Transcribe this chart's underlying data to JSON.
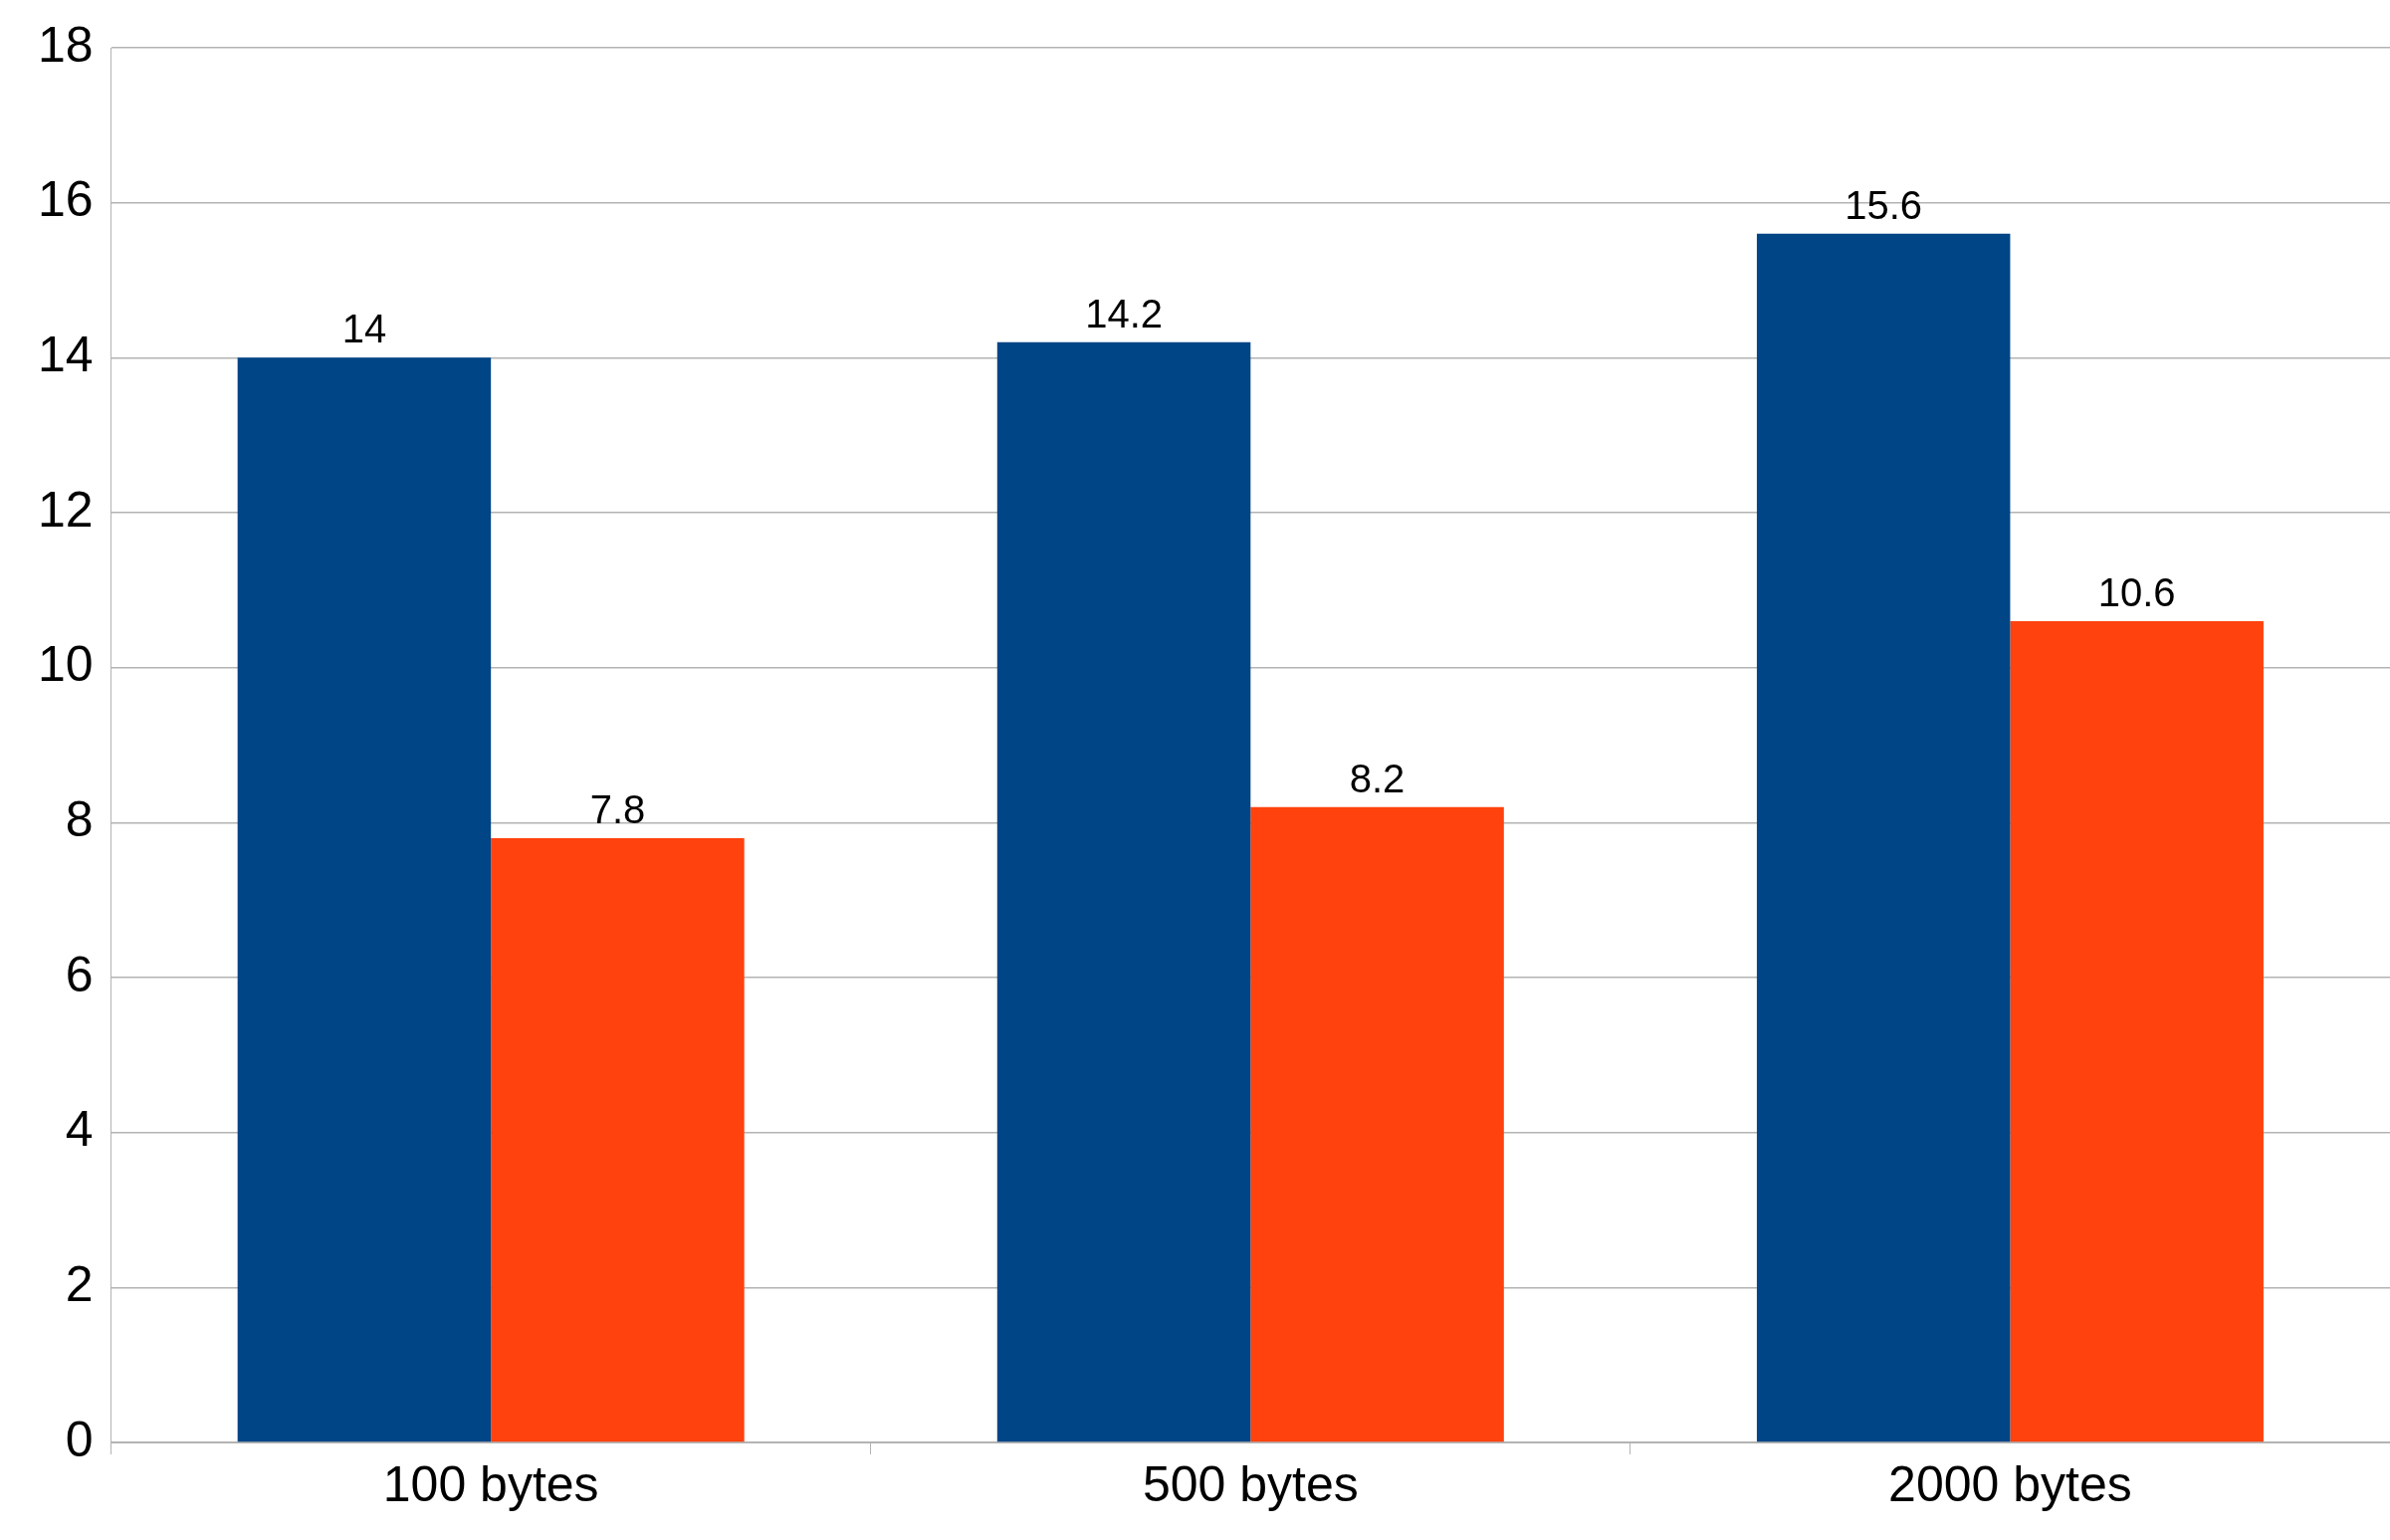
{
  "chart_data": {
    "type": "bar",
    "categories": [
      "100 bytes",
      "500 bytes",
      "2000 bytes"
    ],
    "series": [
      {
        "color": "#004586",
        "values": [
          14,
          14.2,
          15.6
        ]
      },
      {
        "color": "#ff420e",
        "values": [
          7.8,
          8.2,
          10.6
        ]
      }
    ],
    "ylim": [
      0,
      18
    ],
    "yticks": [
      0,
      2,
      4,
      6,
      8,
      10,
      12,
      14,
      16,
      18
    ],
    "grid": "y",
    "data_labels": true
  }
}
